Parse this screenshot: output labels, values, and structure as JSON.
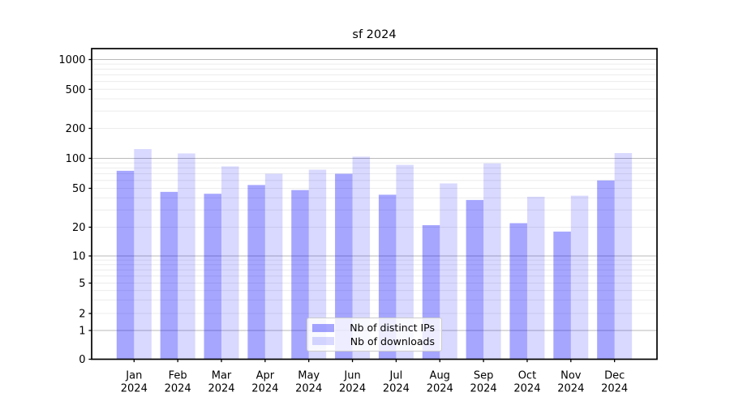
{
  "chart_data": {
    "type": "bar",
    "title": "sf 2024",
    "categories": [
      "Jan",
      "Feb",
      "Mar",
      "Apr",
      "May",
      "Jun",
      "Jul",
      "Aug",
      "Sep",
      "Oct",
      "Nov",
      "Dec"
    ],
    "category_year": "2024",
    "series": [
      {
        "name": "Nb of distinct IPs",
        "color": "rgba(0,0,255,0.35)",
        "values": [
          75,
          46,
          44,
          54,
          48,
          70,
          43,
          21,
          38,
          22,
          18,
          60
        ]
      },
      {
        "name": "Nb of downloads",
        "color": "rgba(0,0,255,0.15)",
        "values": [
          124,
          112,
          83,
          70,
          77,
          104,
          86,
          56,
          89,
          41,
          42,
          113
        ]
      }
    ],
    "yscale": "symlog",
    "yticks": [
      0,
      1,
      2,
      5,
      10,
      20,
      50,
      100,
      200,
      500,
      1000
    ],
    "ylim": [
      0,
      1300
    ],
    "grid": true,
    "legend_position": "lower center"
  },
  "colors": {
    "background": "#ffffff",
    "axis": "#000000",
    "grid_major": "#b9b9b9",
    "grid_minor": "#ececec"
  }
}
